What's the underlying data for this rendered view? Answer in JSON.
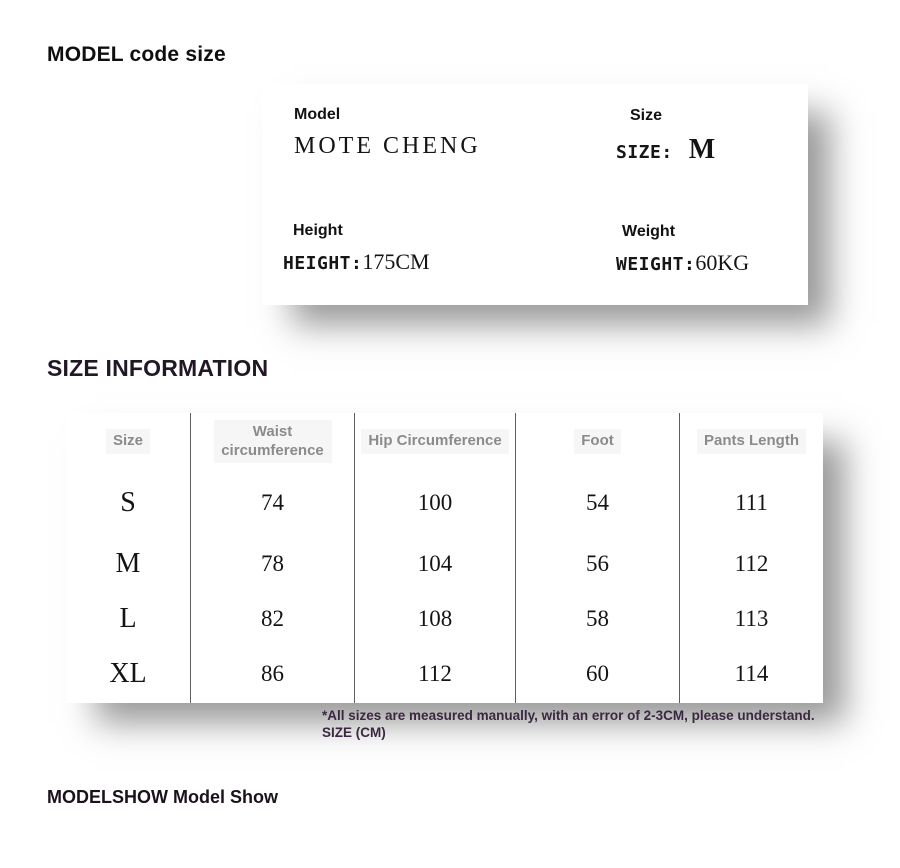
{
  "headings": {
    "top": "MODEL code size",
    "size_info": "SIZE INFORMATION",
    "model_show": "MODELSHOW Model Show"
  },
  "model_card": {
    "model": {
      "label": "Model",
      "value": "MOTE CHENG"
    },
    "size": {
      "label": "Size",
      "caps": "SIZE:",
      "value": "M"
    },
    "height": {
      "label": "Height",
      "caps": "HEIGHT:",
      "value": "175CM"
    },
    "weight": {
      "label": "Weight",
      "caps": "WEIGHT:",
      "value": "60KG"
    }
  },
  "size_table": {
    "columns": [
      "Size",
      "Waist circumference",
      "Hip Circumference",
      "Foot",
      "Pants Length"
    ],
    "rows": [
      {
        "size": "S",
        "values": [
          "74",
          "100",
          "54",
          "111"
        ]
      },
      {
        "size": "M",
        "values": [
          "78",
          "104",
          "56",
          "112"
        ]
      },
      {
        "size": "L",
        "values": [
          "82",
          "108",
          "58",
          "113"
        ]
      },
      {
        "size": "XL",
        "values": [
          "86",
          "112",
          "60",
          "114"
        ]
      }
    ]
  },
  "footnote": {
    "line1": "*All sizes are measured manually, with an error of 2-3CM, please understand.",
    "line2": "SIZE (CM)"
  },
  "colors": {
    "heading_dark": "#221726",
    "footnote_purple": "#3b2840",
    "table_header_gray": "#8b8b8b",
    "divider_gray": "#5f5f5f",
    "shadow_gray": "#808080",
    "background": "#ffffff"
  }
}
